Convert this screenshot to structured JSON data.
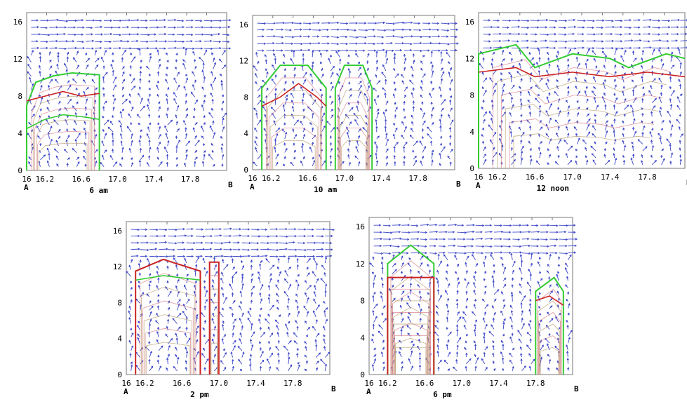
{
  "chart_data": [
    {
      "type": "vector-contour",
      "title": "6 am",
      "start_label": "A",
      "end_label": "B",
      "xlim": [
        16.0,
        18.2
      ],
      "ylim": [
        0,
        17
      ],
      "xtick_labels": [
        "16",
        "16.2",
        "16.6",
        "17.0",
        "17.4",
        "17.8"
      ],
      "ytick_labels": [
        "0",
        "4",
        "8",
        "12",
        "16"
      ],
      "series": [
        {
          "kind": "outer-contour",
          "color": "#33cc33",
          "x": [
            16.0,
            16.0,
            16.1,
            16.3,
            16.5,
            16.8,
            16.8,
            16.8
          ],
          "y": [
            0,
            7,
            9.5,
            10.2,
            10.5,
            10.3,
            10.0,
            0
          ]
        },
        {
          "kind": "contour",
          "color": "#cc2222",
          "x": [
            16.0,
            16.2,
            16.4,
            16.6,
            16.8
          ],
          "y": [
            7.5,
            8.0,
            8.5,
            8.0,
            8.3
          ]
        },
        {
          "kind": "contour",
          "color": "#33cc33",
          "x": [
            16.0,
            16.2,
            16.4,
            16.6,
            16.8
          ],
          "y": [
            4.5,
            5.5,
            6.0,
            5.8,
            5.5
          ]
        }
      ]
    },
    {
      "type": "vector-contour",
      "title": "10 am",
      "start_label": "A",
      "end_label": "B",
      "xlim": [
        16.0,
        18.2
      ],
      "ylim": [
        0,
        17
      ],
      "xtick_labels": [
        "16",
        "16.2",
        "16.6",
        "17.0",
        "17.4",
        "17.8"
      ],
      "ytick_labels": [
        "0",
        "4",
        "8",
        "12",
        "16"
      ],
      "series": [
        {
          "kind": "outer-contour",
          "color": "#33cc33",
          "x": [
            16.1,
            16.1,
            16.3,
            16.6,
            16.8,
            16.8
          ],
          "y": [
            0,
            9.0,
            11.5,
            11.5,
            9.0,
            0
          ]
        },
        {
          "kind": "outer-contour",
          "color": "#33cc33",
          "x": [
            16.9,
            16.9,
            17.0,
            17.2,
            17.3,
            17.3
          ],
          "y": [
            0,
            9.0,
            11.5,
            11.5,
            9.0,
            0
          ]
        },
        {
          "kind": "contour",
          "color": "#cc2222",
          "x": [
            16.1,
            16.3,
            16.5,
            16.7,
            16.8
          ],
          "y": [
            7.0,
            8.0,
            9.5,
            8.0,
            7.0
          ]
        }
      ]
    },
    {
      "type": "vector-contour",
      "title": "12 noon",
      "start_label": "A",
      "end_label": "B",
      "xlim": [
        16.0,
        18.2
      ],
      "ylim": [
        0,
        17
      ],
      "xtick_labels": [
        "16",
        "16.2",
        "16.6",
        "17.0",
        "17.4",
        "17.8"
      ],
      "ytick_labels": [
        "0",
        "4",
        "8",
        "12",
        "16"
      ],
      "series": [
        {
          "kind": "outer-contour",
          "color": "#33cc33",
          "x": [
            16.0,
            16.0,
            16.4,
            16.6,
            17.0,
            17.4,
            17.6,
            18.0,
            18.2
          ],
          "y": [
            0,
            12.5,
            13.5,
            11.0,
            12.5,
            12.0,
            11.0,
            12.5,
            12.0
          ]
        },
        {
          "kind": "contour",
          "color": "#cc2222",
          "x": [
            16.0,
            16.4,
            16.6,
            17.0,
            17.4,
            17.8,
            18.2
          ],
          "y": [
            10.5,
            11.0,
            10.0,
            10.5,
            10.0,
            10.5,
            10.0
          ]
        }
      ]
    },
    {
      "type": "vector-contour",
      "title": "2 pm",
      "start_label": "A",
      "end_label": "B",
      "xlim": [
        16.0,
        18.2
      ],
      "ylim": [
        0,
        17
      ],
      "xtick_labels": [
        "16",
        "16.2",
        "16.6",
        "17.0",
        "17.4",
        "17.8"
      ],
      "ytick_labels": [
        "0",
        "4",
        "8",
        "12",
        "16"
      ],
      "series": [
        {
          "kind": "outer-contour",
          "color": "#cc2222",
          "x": [
            16.1,
            16.1,
            16.4,
            16.8,
            16.8
          ],
          "y": [
            0,
            11.5,
            12.8,
            11.5,
            0
          ]
        },
        {
          "kind": "outer-contour",
          "color": "#cc2222",
          "x": [
            16.9,
            16.9,
            17.0,
            17.0
          ],
          "y": [
            0,
            12.5,
            12.5,
            0
          ]
        },
        {
          "kind": "contour",
          "color": "#33cc33",
          "x": [
            16.1,
            16.4,
            16.8
          ],
          "y": [
            10.5,
            11.0,
            10.5
          ]
        }
      ]
    },
    {
      "type": "vector-contour",
      "title": "6 pm",
      "start_label": "A",
      "end_label": "B",
      "xlim": [
        16.0,
        18.2
      ],
      "ylim": [
        0,
        17
      ],
      "xtick_labels": [
        "16",
        "16.2",
        "16.6",
        "17.0",
        "17.4",
        "17.8"
      ],
      "ytick_labels": [
        "0",
        "4",
        "8",
        "12",
        "16"
      ],
      "series": [
        {
          "kind": "outer-contour",
          "color": "#33cc33",
          "x": [
            16.2,
            16.2,
            16.45,
            16.7,
            16.7
          ],
          "y": [
            0,
            12.0,
            14.0,
            12.0,
            0
          ]
        },
        {
          "kind": "outer-contour",
          "color": "#cc2222",
          "x": [
            16.2,
            16.2,
            16.7,
            16.7
          ],
          "y": [
            0,
            10.5,
            10.5,
            0
          ]
        },
        {
          "kind": "outer-contour",
          "color": "#33cc33",
          "x": [
            17.8,
            17.8,
            18.0,
            18.1,
            18.1
          ],
          "y": [
            0,
            9.0,
            10.5,
            9.0,
            0
          ]
        },
        {
          "kind": "contour",
          "color": "#cc2222",
          "x": [
            17.8,
            17.95,
            18.1
          ],
          "y": [
            8.0,
            8.5,
            7.5
          ]
        }
      ]
    }
  ]
}
